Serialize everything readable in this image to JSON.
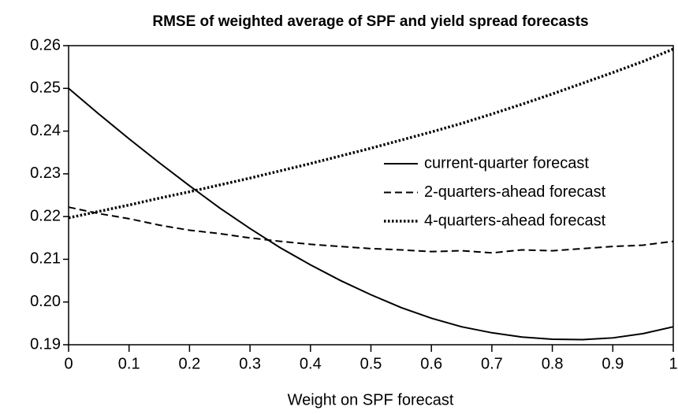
{
  "chart_data": {
    "type": "line",
    "title": "RMSE of weighted average of SPF and yield spread forecasts",
    "x_label": "Weight on SPF forecast",
    "x": [
      0,
      0.05,
      0.1,
      0.15,
      0.2,
      0.25,
      0.3,
      0.35,
      0.4,
      0.45,
      0.5,
      0.55,
      0.6,
      0.65,
      0.7,
      0.75,
      0.8,
      0.85,
      0.9,
      0.95,
      1
    ],
    "series": [
      {
        "name": "current-quarter forecast",
        "color": "#000000",
        "line_style": "solid",
        "values": [
          0.25,
          0.244,
          0.2382,
          0.2326,
          0.2272,
          0.222,
          0.2172,
          0.2127,
          0.2087,
          0.205,
          0.2017,
          0.1987,
          0.1962,
          0.1942,
          0.1928,
          0.1918,
          0.1913,
          0.1912,
          0.1916,
          0.1926,
          0.1942
        ]
      },
      {
        "name": "2-quarters-ahead forecast",
        "color": "#000000",
        "line_style": "dashed",
        "values": [
          0.2222,
          0.2207,
          0.2195,
          0.218,
          0.2168,
          0.216,
          0.215,
          0.2142,
          0.2135,
          0.213,
          0.2125,
          0.2122,
          0.2118,
          0.212,
          0.2115,
          0.2122,
          0.212,
          0.2125,
          0.213,
          0.2133,
          0.2142
        ]
      },
      {
        "name": "4-quarters-ahead forecast",
        "color": "#000000",
        "line_style": "dotted",
        "values": [
          0.2197,
          0.2212,
          0.2227,
          0.2243,
          0.2258,
          0.2274,
          0.229,
          0.2307,
          0.2324,
          0.2342,
          0.236,
          0.2379,
          0.2398,
          0.2418,
          0.244,
          0.2463,
          0.2487,
          0.2512,
          0.2537,
          0.2563,
          0.2592
        ]
      }
    ],
    "xlim": [
      0,
      1
    ],
    "xticks": [
      0,
      0.1,
      0.2,
      0.3,
      0.4,
      0.5,
      0.6,
      0.7,
      0.8,
      0.9,
      1
    ],
    "ylim": [
      0.19,
      0.26
    ],
    "yticks": [
      0.19,
      {
        "value": 0.2,
        "label": "0.20"
      },
      0.21,
      0.22,
      0.23,
      0.24,
      0.25,
      0.26
    ],
    "grid": false,
    "legend": "right"
  }
}
